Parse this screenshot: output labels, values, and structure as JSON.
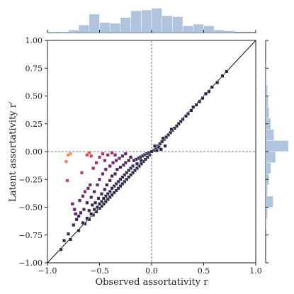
{
  "chart_data": {
    "type": "scatter",
    "title": "",
    "xlabel": "Observed assortativity r",
    "ylabel": "Latent assortativity r′",
    "xlim": [
      -1.0,
      1.0
    ],
    "ylim": [
      -1.0,
      1.0
    ],
    "x_ticks": [
      "−1.0",
      "−0.5",
      "0.0",
      "0.5",
      "1.0"
    ],
    "y_ticks": [
      "−1.00",
      "−0.75",
      "−0.50",
      "−0.25",
      "0.00",
      "0.25",
      "0.50",
      "0.75",
      "1.00"
    ],
    "x_tick_values": [
      -1.0,
      -0.5,
      0.0,
      0.5,
      1.0
    ],
    "y_tick_values": [
      -1.0,
      -0.75,
      -0.5,
      -0.25,
      0.0,
      0.25,
      0.5,
      0.75,
      1.0
    ],
    "grid": false,
    "reference_lines": {
      "diagonal": "y = x",
      "vertical": "x = 0 (dashed)",
      "horizontal": "y = 0 (dashed)"
    },
    "colormap": "magma (dark → orange)",
    "colors": {
      "points_dark": "#2b2745",
      "points_orange": "#f08a4b",
      "hist": "#b0c4de",
      "axis": "#222222"
    },
    "points": [
      {
        "x": 0.72,
        "y": 0.72
      },
      {
        "x": 0.68,
        "y": 0.68
      },
      {
        "x": 0.63,
        "y": 0.62
      },
      {
        "x": 0.58,
        "y": 0.58
      },
      {
        "x": 0.55,
        "y": 0.54
      },
      {
        "x": 0.52,
        "y": 0.52
      },
      {
        "x": 0.49,
        "y": 0.48
      },
      {
        "x": 0.46,
        "y": 0.45
      },
      {
        "x": 0.43,
        "y": 0.42
      },
      {
        "x": 0.4,
        "y": 0.4
      },
      {
        "x": 0.38,
        "y": 0.37
      },
      {
        "x": 0.35,
        "y": 0.34
      },
      {
        "x": 0.33,
        "y": 0.32
      },
      {
        "x": 0.3,
        "y": 0.29
      },
      {
        "x": 0.28,
        "y": 0.27
      },
      {
        "x": 0.26,
        "y": 0.25
      },
      {
        "x": 0.24,
        "y": 0.23
      },
      {
        "x": 0.22,
        "y": 0.21
      },
      {
        "x": 0.2,
        "y": 0.19
      },
      {
        "x": 0.18,
        "y": 0.17
      },
      {
        "x": 0.16,
        "y": 0.15
      },
      {
        "x": 0.14,
        "y": 0.13
      },
      {
        "x": 0.12,
        "y": 0.11
      },
      {
        "x": 0.1,
        "y": 0.09
      },
      {
        "x": 0.08,
        "y": 0.07
      },
      {
        "x": 0.06,
        "y": 0.05
      },
      {
        "x": 0.04,
        "y": 0.03
      },
      {
        "x": 0.02,
        "y": 0.01
      },
      {
        "x": 0.0,
        "y": 0.0
      },
      {
        "x": 0.19,
        "y": 0.2
      },
      {
        "x": 0.11,
        "y": 0.12
      },
      {
        "x": 0.07,
        "y": 0.04
      },
      {
        "x": 0.03,
        "y": 0.05
      },
      {
        "x": 0.05,
        "y": 0.01
      },
      {
        "x": 0.09,
        "y": 0.02
      },
      {
        "x": 0.13,
        "y": 0.05
      },
      {
        "x": -0.02,
        "y": -0.03
      },
      {
        "x": -0.04,
        "y": -0.05
      },
      {
        "x": -0.06,
        "y": -0.07
      },
      {
        "x": -0.08,
        "y": -0.09
      },
      {
        "x": -0.1,
        "y": -0.11
      },
      {
        "x": -0.12,
        "y": -0.13
      },
      {
        "x": -0.14,
        "y": -0.15
      },
      {
        "x": -0.16,
        "y": -0.17
      },
      {
        "x": -0.18,
        "y": -0.19
      },
      {
        "x": -0.2,
        "y": -0.21
      },
      {
        "x": -0.22,
        "y": -0.23
      },
      {
        "x": -0.24,
        "y": -0.25
      },
      {
        "x": -0.26,
        "y": -0.27
      },
      {
        "x": -0.28,
        "y": -0.29
      },
      {
        "x": -0.3,
        "y": -0.31
      },
      {
        "x": -0.32,
        "y": -0.33
      },
      {
        "x": -0.34,
        "y": -0.35
      },
      {
        "x": -0.36,
        "y": -0.37
      },
      {
        "x": -0.38,
        "y": -0.39
      },
      {
        "x": -0.4,
        "y": -0.41
      },
      {
        "x": -0.42,
        "y": -0.43
      },
      {
        "x": -0.44,
        "y": -0.45
      },
      {
        "x": -0.46,
        "y": -0.47
      },
      {
        "x": -0.48,
        "y": -0.49
      },
      {
        "x": -0.5,
        "y": -0.51
      },
      {
        "x": -0.53,
        "y": -0.54
      },
      {
        "x": -0.56,
        "y": -0.57
      },
      {
        "x": -0.6,
        "y": -0.61
      },
      {
        "x": -0.64,
        "y": -0.65
      },
      {
        "x": -0.7,
        "y": -0.71
      },
      {
        "x": -0.78,
        "y": -0.79
      },
      {
        "x": -0.87,
        "y": -0.88
      },
      {
        "x": -0.03,
        "y": -0.01
      },
      {
        "x": -0.05,
        "y": -0.02
      },
      {
        "x": -0.07,
        "y": -0.03
      },
      {
        "x": -0.09,
        "y": -0.04
      },
      {
        "x": -0.11,
        "y": -0.05
      },
      {
        "x": -0.13,
        "y": -0.06
      },
      {
        "x": -0.15,
        "y": -0.07
      },
      {
        "x": -0.17,
        "y": -0.08
      },
      {
        "x": -0.1,
        "y": -0.08
      },
      {
        "x": -0.14,
        "y": -0.11
      },
      {
        "x": -0.18,
        "y": -0.13
      },
      {
        "x": -0.2,
        "y": -0.15
      },
      {
        "x": -0.22,
        "y": -0.17
      },
      {
        "x": -0.24,
        "y": -0.19
      },
      {
        "x": -0.26,
        "y": -0.21
      },
      {
        "x": -0.28,
        "y": -0.23
      },
      {
        "x": -0.3,
        "y": -0.25
      },
      {
        "x": -0.32,
        "y": -0.27
      },
      {
        "x": -0.34,
        "y": -0.29
      },
      {
        "x": -0.36,
        "y": -0.31
      },
      {
        "x": -0.38,
        "y": -0.33
      },
      {
        "x": -0.4,
        "y": -0.36
      },
      {
        "x": -0.42,
        "y": -0.38
      },
      {
        "x": -0.44,
        "y": -0.4
      },
      {
        "x": -0.46,
        "y": -0.42
      },
      {
        "x": -0.48,
        "y": -0.45
      },
      {
        "x": -0.5,
        "y": -0.47
      },
      {
        "x": -0.52,
        "y": -0.5
      },
      {
        "x": -0.55,
        "y": -0.52
      },
      {
        "x": -0.58,
        "y": -0.56
      },
      {
        "x": -0.62,
        "y": -0.6
      },
      {
        "x": -0.66,
        "y": -0.64
      },
      {
        "x": -0.2,
        "y": -0.05
      },
      {
        "x": -0.22,
        "y": -0.08
      },
      {
        "x": -0.25,
        "y": -0.1
      },
      {
        "x": -0.27,
        "y": -0.12
      },
      {
        "x": -0.3,
        "y": -0.14
      },
      {
        "x": -0.33,
        "y": -0.16
      },
      {
        "x": -0.35,
        "y": -0.2
      },
      {
        "x": -0.38,
        "y": -0.22
      },
      {
        "x": -0.4,
        "y": -0.26
      },
      {
        "x": -0.43,
        "y": -0.3
      },
      {
        "x": -0.45,
        "y": -0.34
      },
      {
        "x": -0.48,
        "y": -0.38
      },
      {
        "x": -0.51,
        "y": -0.42
      },
      {
        "x": -0.54,
        "y": -0.46
      },
      {
        "x": -0.57,
        "y": -0.48
      },
      {
        "x": -0.6,
        "y": -0.53
      },
      {
        "x": -0.25,
        "y": -0.02
      },
      {
        "x": -0.28,
        "y": -0.04
      },
      {
        "x": -0.31,
        "y": -0.06
      },
      {
        "x": -0.34,
        "y": -0.08
      },
      {
        "x": -0.37,
        "y": -0.1
      },
      {
        "x": -0.4,
        "y": -0.13
      },
      {
        "x": -0.44,
        "y": -0.16
      },
      {
        "x": -0.47,
        "y": -0.2
      },
      {
        "x": -0.5,
        "y": -0.25
      },
      {
        "x": -0.52,
        "y": -0.3
      },
      {
        "x": -0.55,
        "y": -0.36
      },
      {
        "x": -0.58,
        "y": -0.41
      },
      {
        "x": -0.62,
        "y": -0.46
      },
      {
        "x": -0.65,
        "y": -0.52
      },
      {
        "x": -0.7,
        "y": -0.58
      },
      {
        "x": -0.75,
        "y": -0.66
      },
      {
        "x": -0.8,
        "y": -0.74
      },
      {
        "x": -0.84,
        "y": -0.8
      },
      {
        "x": -0.72,
        "y": -0.61
      },
      {
        "x": -0.68,
        "y": -0.55
      },
      {
        "x": -0.47,
        "y": -0.02
      },
      {
        "x": -0.5,
        "y": -0.05
      },
      {
        "x": -0.53,
        "y": -0.1
      },
      {
        "x": -0.56,
        "y": -0.15
      },
      {
        "x": -0.45,
        "y": -0.08
      },
      {
        "x": -0.42,
        "y": -0.03
      },
      {
        "x": -0.38,
        "y": -0.01
      },
      {
        "x": -0.35,
        "y": -0.03
      },
      {
        "x": -0.6,
        "y": -0.01
      },
      {
        "x": -0.62,
        "y": -0.03
      },
      {
        "x": -0.58,
        "y": -0.04
      },
      {
        "x": -0.67,
        "y": -0.19
      },
      {
        "x": -0.78,
        "y": -0.02
      },
      {
        "x": -0.8,
        "y": -0.03
      },
      {
        "x": -0.82,
        "y": -0.09
      },
      {
        "x": -0.81,
        "y": -0.26
      },
      {
        "x": -0.76,
        "y": -0.47
      },
      {
        "x": -0.74,
        "y": -0.52
      },
      {
        "x": -0.73,
        "y": -0.56
      },
      {
        "x": -0.69,
        "y": -0.44
      },
      {
        "x": -0.66,
        "y": -0.4
      },
      {
        "x": -0.64,
        "y": -0.36
      },
      {
        "x": -0.61,
        "y": -0.33
      },
      {
        "x": -0.59,
        "y": -0.3
      }
    ],
    "top_hist": {
      "bin_edges": [
        -1.0,
        -0.9,
        -0.8,
        -0.7,
        -0.6,
        -0.5,
        -0.4,
        -0.3,
        -0.2,
        -0.1,
        0.0,
        0.1,
        0.2,
        0.3,
        0.4,
        0.5,
        0.6,
        0.7,
        0.8,
        0.9,
        1.0
      ],
      "counts": [
        1,
        1,
        3,
        9,
        22,
        12,
        11,
        18,
        26,
        27,
        29,
        20,
        19,
        8,
        10,
        8,
        3,
        2,
        0,
        0
      ]
    },
    "right_hist": {
      "bin_edges": [
        -1.0,
        -0.9,
        -0.8,
        -0.7,
        -0.6,
        -0.5,
        -0.4,
        -0.3,
        -0.2,
        -0.1,
        0.0,
        0.1,
        0.2,
        0.3,
        0.4,
        0.5,
        0.6,
        0.7,
        0.8,
        0.9,
        1.0
      ],
      "counts": [
        0,
        0,
        0,
        1,
        2,
        9,
        2,
        4,
        6,
        12,
        28,
        10,
        6,
        4,
        3,
        2,
        1,
        1,
        0,
        0
      ]
    }
  }
}
